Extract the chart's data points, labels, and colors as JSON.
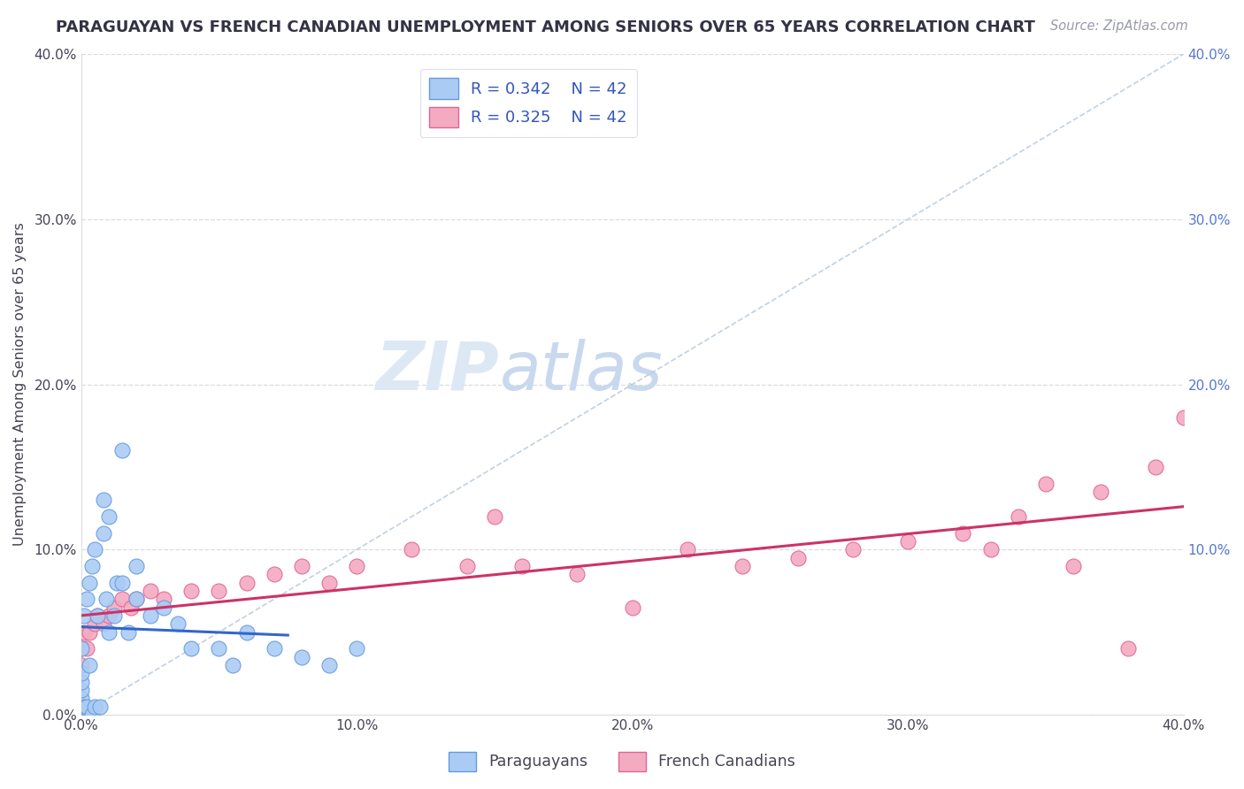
{
  "title": "PARAGUAYAN VS FRENCH CANADIAN UNEMPLOYMENT AMONG SENIORS OVER 65 YEARS CORRELATION CHART",
  "source_text": "Source: ZipAtlas.com",
  "ylabel": "Unemployment Among Seniors over 65 years",
  "xlim": [
    0.0,
    0.4
  ],
  "ylim": [
    0.0,
    0.4
  ],
  "xtick_vals": [
    0.0,
    0.1,
    0.2,
    0.3,
    0.4
  ],
  "ytick_vals": [
    0.0,
    0.1,
    0.2,
    0.3,
    0.4
  ],
  "paraguayan_R": 0.342,
  "paraguayan_N": 42,
  "french_canadian_R": 0.325,
  "french_canadian_N": 42,
  "blue_color": "#aaccf4",
  "blue_edge_color": "#6699dd",
  "pink_color": "#f4aac0",
  "pink_edge_color": "#dd6699",
  "blue_line_color": "#3366cc",
  "pink_line_color": "#cc3366",
  "diag_color": "#bbccdd",
  "watermark_zip_color": "#dde8f5",
  "watermark_atlas_color": "#c8d8ee",
  "background_color": "#ffffff",
  "title_color": "#333344",
  "right_tick_color": "#5577cc",
  "legend_text_color": "#3355bb",
  "legend_labels": [
    "Paraguayans",
    "French Canadians"
  ],
  "par_x": [
    0.0,
    0.0,
    0.0,
    0.0,
    0.0,
    0.0,
    0.0,
    0.001,
    0.001,
    0.002,
    0.002,
    0.003,
    0.003,
    0.004,
    0.004,
    0.005,
    0.005,
    0.006,
    0.007,
    0.008,
    0.008,
    0.009,
    0.01,
    0.01,
    0.012,
    0.013,
    0.015,
    0.015,
    0.017,
    0.02,
    0.02,
    0.025,
    0.03,
    0.035,
    0.04,
    0.05,
    0.055,
    0.06,
    0.07,
    0.08,
    0.09,
    0.1
  ],
  "par_y": [
    0.0,
    0.005,
    0.01,
    0.015,
    0.02,
    0.025,
    0.04,
    0.005,
    0.06,
    0.005,
    0.07,
    0.03,
    0.08,
    0.0,
    0.09,
    0.005,
    0.1,
    0.06,
    0.005,
    0.11,
    0.13,
    0.07,
    0.05,
    0.12,
    0.06,
    0.08,
    0.08,
    0.16,
    0.05,
    0.07,
    0.09,
    0.06,
    0.065,
    0.055,
    0.04,
    0.04,
    0.03,
    0.05,
    0.04,
    0.035,
    0.03,
    0.04
  ],
  "fc_x": [
    0.0,
    0.0,
    0.001,
    0.002,
    0.003,
    0.005,
    0.006,
    0.008,
    0.01,
    0.012,
    0.015,
    0.018,
    0.02,
    0.025,
    0.03,
    0.04,
    0.05,
    0.06,
    0.07,
    0.08,
    0.09,
    0.1,
    0.12,
    0.14,
    0.15,
    0.16,
    0.18,
    0.2,
    0.22,
    0.24,
    0.26,
    0.28,
    0.3,
    0.32,
    0.34,
    0.36,
    0.37,
    0.38,
    0.39,
    0.4,
    0.35,
    0.33
  ],
  "fc_y": [
    0.03,
    0.04,
    0.05,
    0.04,
    0.05,
    0.055,
    0.06,
    0.055,
    0.06,
    0.065,
    0.07,
    0.065,
    0.07,
    0.075,
    0.07,
    0.075,
    0.075,
    0.08,
    0.085,
    0.09,
    0.08,
    0.09,
    0.1,
    0.09,
    0.12,
    0.09,
    0.085,
    0.065,
    0.1,
    0.09,
    0.095,
    0.1,
    0.105,
    0.11,
    0.12,
    0.09,
    0.135,
    0.04,
    0.15,
    0.18,
    0.14,
    0.1
  ]
}
